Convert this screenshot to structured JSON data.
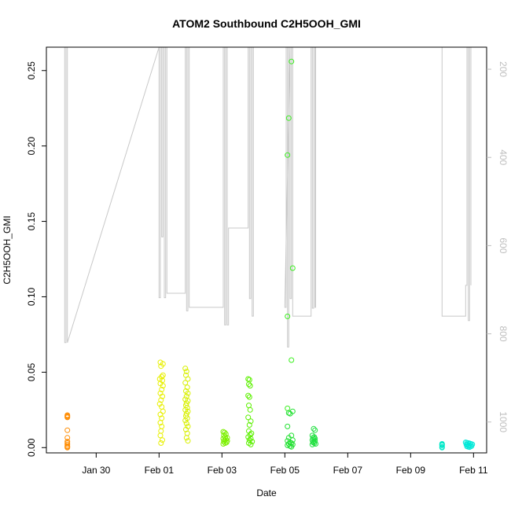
{
  "chart_data": {
    "type": "scatter",
    "title": "ATOM2 Southbound C2H5OOH_GMI",
    "xlabel": "Date",
    "ylabel": "C2H5OOH_GMI",
    "xlim": [
      "2017-01-28T10:00",
      "2017-02-11T10:00"
    ],
    "ylim": [
      -0.0035,
      0.2655
    ],
    "y_ticks": [
      0.0,
      0.05,
      0.1,
      0.15,
      0.2,
      0.25
    ],
    "y_tick_labels": [
      "0.00",
      "0.05",
      "0.10",
      "0.15",
      "0.20",
      "0.25"
    ],
    "x_ticks": [
      "2017-01-30",
      "2017-02-01",
      "2017-02-03",
      "2017-02-05",
      "2017-02-07",
      "2017-02-09",
      "2017-02-11"
    ],
    "x_tick_labels": [
      "Jan 30",
      "Feb 01",
      "Feb 03",
      "Feb 05",
      "Feb 07",
      "Feb 09",
      "Feb 11"
    ],
    "secondary_axis": {
      "ylim_inverted": [
        1070,
        150
      ],
      "ticks": [
        200,
        400,
        600,
        800,
        1000
      ],
      "tick_labels": [
        "200",
        "400",
        "600",
        "800",
        "1000"
      ],
      "color": "#bebebe"
    },
    "grid": false,
    "series": [
      {
        "color": "#ff8c00",
        "x": [
          "2017-01-29T02:00",
          "2017-01-29T02:00",
          "2017-01-29T02:00",
          "2017-01-29T02:00",
          "2017-01-29T02:00",
          "2017-01-29T02:00",
          "2017-01-29T02:00",
          "2017-01-29T02:00",
          "2017-01-29T02:00",
          "2017-01-29T02:00",
          "2017-01-29T02:00",
          "2017-01-29T02:00"
        ],
        "y": [
          0.0215,
          0.021,
          0.0205,
          0.02,
          0.0115,
          0.0065,
          0.004,
          0.003,
          0.002,
          0.001,
          0.0005,
          0.0
        ]
      },
      {
        "color": "#e8f000",
        "x": [
          "2017-02-01T01:00",
          "2017-02-01T03:00",
          "2017-02-01T01:30",
          "2017-02-01T03:00",
          "2017-02-01T02:00",
          "2017-02-01T00:30",
          "2017-02-01T02:30",
          "2017-02-01T01:00",
          "2017-02-01T03:00",
          "2017-02-01T02:00",
          "2017-02-01T01:00",
          "2017-02-01T02:30",
          "2017-02-01T01:30",
          "2017-02-01T00:30",
          "2017-02-01T02:00",
          "2017-02-01T03:00",
          "2017-02-01T01:00",
          "2017-02-01T02:00",
          "2017-02-01T01:00",
          "2017-02-01T02:00",
          "2017-02-01T01:30",
          "2017-02-01T01:00",
          "2017-02-01T02:30",
          "2017-02-01T01:30"
        ],
        "y": [
          0.0565,
          0.0555,
          0.054,
          0.048,
          0.047,
          0.0455,
          0.0445,
          0.0425,
          0.041,
          0.0385,
          0.036,
          0.034,
          0.0315,
          0.029,
          0.027,
          0.024,
          0.022,
          0.0195,
          0.0165,
          0.014,
          0.011,
          0.008,
          0.005,
          0.003
        ]
      },
      {
        "color": "#d8f000",
        "x": [
          "2017-02-01T20:00",
          "2017-02-01T21:00",
          "2017-02-01T20:30",
          "2017-02-01T22:00",
          "2017-02-01T20:00",
          "2017-02-01T21:30",
          "2017-02-01T20:30",
          "2017-02-01T22:00",
          "2017-02-01T21:00",
          "2017-02-01T20:00",
          "2017-02-01T22:00",
          "2017-02-01T21:00",
          "2017-02-01T20:30",
          "2017-02-01T21:30",
          "2017-02-01T20:00",
          "2017-02-01T22:00",
          "2017-02-01T21:00",
          "2017-02-01T20:30",
          "2017-02-01T21:30",
          "2017-02-01T20:00",
          "2017-02-01T21:00",
          "2017-02-01T22:00",
          "2017-02-01T20:30",
          "2017-02-01T21:30",
          "2017-02-01T21:00",
          "2017-02-01T22:00"
        ],
        "y": [
          0.0525,
          0.0505,
          0.048,
          0.0455,
          0.043,
          0.04,
          0.0375,
          0.036,
          0.034,
          0.032,
          0.031,
          0.0295,
          0.028,
          0.0265,
          0.025,
          0.024,
          0.0225,
          0.021,
          0.0195,
          0.018,
          0.016,
          0.014,
          0.012,
          0.0095,
          0.0065,
          0.0045
        ]
      },
      {
        "color": "#7df000",
        "x": [
          "2017-02-03T01:00",
          "2017-02-03T02:00",
          "2017-02-03T03:00",
          "2017-02-03T01:30",
          "2017-02-03T02:30",
          "2017-02-03T04:00",
          "2017-02-03T01:00",
          "2017-02-03T03:00",
          "2017-02-03T02:00",
          "2017-02-03T04:00",
          "2017-02-03T01:30",
          "2017-02-03T03:30",
          "2017-02-03T02:30",
          "2017-02-03T01:00"
        ],
        "y": [
          0.0105,
          0.01,
          0.009,
          0.008,
          0.007,
          0.0065,
          0.006,
          0.0055,
          0.005,
          0.0045,
          0.004,
          0.0035,
          0.003,
          0.0025
        ]
      },
      {
        "color": "#5cf000",
        "x": [
          "2017-02-03T20:00",
          "2017-02-03T21:00",
          "2017-02-03T20:30",
          "2017-02-03T21:30",
          "2017-02-03T20:00",
          "2017-02-03T21:00",
          "2017-02-03T20:30",
          "2017-02-03T21:30",
          "2017-02-03T20:00",
          "2017-02-03T22:00",
          "2017-02-03T21:00",
          "2017-02-03T20:30",
          "2017-02-03T22:30",
          "2017-02-03T21:30",
          "2017-02-03T20:00",
          "2017-02-03T22:00",
          "2017-02-03T21:00",
          "2017-02-03T23:00",
          "2017-02-03T20:30",
          "2017-02-03T22:00"
        ],
        "y": [
          0.0455,
          0.045,
          0.042,
          0.041,
          0.0345,
          0.0335,
          0.028,
          0.025,
          0.02,
          0.0175,
          0.015,
          0.011,
          0.0095,
          0.0085,
          0.007,
          0.006,
          0.005,
          0.004,
          0.003,
          0.002
        ]
      },
      {
        "color": "#3cf020",
        "x": [
          "2017-02-05T05:00",
          "2017-02-05T03:00",
          "2017-02-05T02:00",
          "2017-02-05T06:00",
          "2017-02-05T02:00",
          "2017-02-05T05:00",
          "2017-02-05T02:00"
        ],
        "y": [
          0.256,
          0.2185,
          0.194,
          0.119,
          0.087,
          0.058,
          0.026
        ]
      },
      {
        "color": "#20e030",
        "x": [
          "2017-02-05T06:00",
          "2017-02-05T03:00",
          "2017-02-05T04:00",
          "2017-02-05T02:00",
          "2017-02-05T05:00",
          "2017-02-05T03:00",
          "2017-02-05T06:00",
          "2017-02-05T02:00",
          "2017-02-05T04:00",
          "2017-02-05T05:00",
          "2017-02-05T03:00",
          "2017-02-05T06:00",
          "2017-02-05T02:00",
          "2017-02-05T04:00",
          "2017-02-05T05:00"
        ],
        "y": [
          0.024,
          0.023,
          0.0225,
          0.014,
          0.008,
          0.0065,
          0.005,
          0.0045,
          0.0035,
          0.003,
          0.0025,
          0.002,
          0.0015,
          0.001,
          0.0005
        ]
      },
      {
        "color": "#20e040",
        "x": [
          "2017-02-05T22:00",
          "2017-02-05T23:00",
          "2017-02-05T21:00",
          "2017-02-05T22:30",
          "2017-02-05T21:30",
          "2017-02-05T23:00",
          "2017-02-05T22:00",
          "2017-02-05T21:00",
          "2017-02-05T23:00",
          "2017-02-05T22:00",
          "2017-02-05T21:30",
          "2017-02-05T22:30",
          "2017-02-05T23:30",
          "2017-02-05T21:00"
        ],
        "y": [
          0.0125,
          0.0115,
          0.008,
          0.007,
          0.0065,
          0.006,
          0.0055,
          0.005,
          0.0045,
          0.004,
          0.0035,
          0.003,
          0.0025,
          0.002
        ]
      },
      {
        "color": "#00e8c8",
        "x": [
          "2017-02-10T00:00",
          "2017-02-10T00:00",
          "2017-02-10T00:00",
          "2017-02-10T00:00",
          "2017-02-10T00:00"
        ],
        "y": [
          0.0025,
          0.002,
          0.0015,
          0.0005,
          0.0
        ]
      },
      {
        "color": "#00e8d8",
        "x": [
          "2017-02-10T18:00",
          "2017-02-10T19:00",
          "2017-02-10T20:00",
          "2017-02-10T21:00",
          "2017-02-10T22:00",
          "2017-02-10T23:00",
          "2017-02-10T18:30",
          "2017-02-10T19:30",
          "2017-02-10T20:30",
          "2017-02-10T21:30",
          "2017-02-10T22:30",
          "2017-02-10T19:00",
          "2017-02-10T20:00",
          "2017-02-10T21:00"
        ],
        "y": [
          0.0035,
          0.0032,
          0.003,
          0.0028,
          0.0025,
          0.0022,
          0.002,
          0.0018,
          0.0015,
          0.0012,
          0.001,
          0.0008,
          0.0005,
          0.0003
        ]
      }
    ],
    "overlay": {
      "color": "#c8c8c8",
      "axis": "secondary",
      "x": [
        "2017-01-29T00:00",
        "2017-01-29T00:00",
        "2017-01-29T01:00",
        "2017-01-29T01:00",
        "2017-01-29T02:00",
        "2017-01-29T02:00",
        "2017-02-01T00:00",
        "2017-02-01T00:00",
        "2017-02-01T01:00",
        "2017-02-01T01:00",
        "2017-02-01T02:00",
        "2017-02-01T02:00",
        "2017-02-01T03:00",
        "2017-02-01T03:00",
        "2017-02-01T04:00",
        "2017-02-01T04:00",
        "2017-02-01T05:00",
        "2017-02-01T05:00",
        "2017-02-01T06:00",
        "2017-02-01T06:00",
        "2017-02-01T20:00",
        "2017-02-01T20:00",
        "2017-02-01T21:00",
        "2017-02-01T21:00",
        "2017-02-01T22:00",
        "2017-02-01T22:00",
        "2017-02-01T23:00",
        "2017-02-01T23:00",
        "2017-02-03T01:00",
        "2017-02-03T01:00",
        "2017-02-03T02:00",
        "2017-02-03T02:00",
        "2017-02-03T03:00",
        "2017-02-03T03:00",
        "2017-02-03T04:00",
        "2017-02-03T04:00",
        "2017-02-03T05:00",
        "2017-02-03T05:00",
        "2017-02-03T20:00",
        "2017-02-03T20:00",
        "2017-02-03T21:00",
        "2017-02-03T21:00",
        "2017-02-03T22:00",
        "2017-02-03T22:00",
        "2017-02-03T23:00",
        "2017-02-03T23:00",
        "2017-02-04T00:00",
        "2017-02-04T00:00",
        "2017-02-05T04:00",
        "2017-02-05T00:00",
        "2017-02-05T01:00",
        "2017-02-05T01:00",
        "2017-02-05T02:00",
        "2017-02-05T02:00",
        "2017-02-05T03:00",
        "2017-02-05T03:00",
        "2017-02-05T04:00",
        "2017-02-05T04:00",
        "2017-02-05T05:00",
        "2017-02-05T05:00",
        "2017-02-05T06:00",
        "2017-02-05T06:00",
        "2017-02-05T20:00",
        "2017-02-05T20:00",
        "2017-02-05T21:00",
        "2017-02-05T21:00",
        "2017-02-05T22:00",
        "2017-02-05T22:00",
        "2017-02-05T23:00",
        "2017-02-05T23:00",
        "2017-02-05T23:30",
        "2017-02-05T23:30",
        "2017-02-10T00:00",
        "2017-02-10T00:00",
        "2017-02-10T18:00",
        "2017-02-10T18:00",
        "2017-02-10T19:00",
        "2017-02-10T19:00",
        "2017-02-10T20:00",
        "2017-02-10T20:00",
        "2017-02-10T21:00",
        "2017-02-10T21:00",
        "2017-02-10T22:00",
        "2017-02-10T22:00"
      ],
      "y": [
        150,
        820,
        820,
        150,
        150,
        820,
        150,
        718,
        718,
        150,
        150,
        580,
        580,
        150,
        150,
        718,
        718,
        150,
        150,
        708,
        708,
        150,
        150,
        748,
        748,
        150,
        150,
        740,
        740,
        150,
        150,
        780,
        780,
        150,
        150,
        780,
        780,
        560,
        560,
        150,
        150,
        720,
        720,
        150,
        150,
        760,
        760,
        150,
        150,
        740,
        740,
        150,
        150,
        830,
        830,
        150,
        150,
        720,
        720,
        150,
        150,
        760,
        760,
        150,
        150,
        742,
        742,
        150,
        150,
        740,
        740,
        150,
        150,
        760,
        760,
        690,
        690,
        150,
        150,
        770,
        770,
        150,
        150,
        690
      ]
    }
  }
}
